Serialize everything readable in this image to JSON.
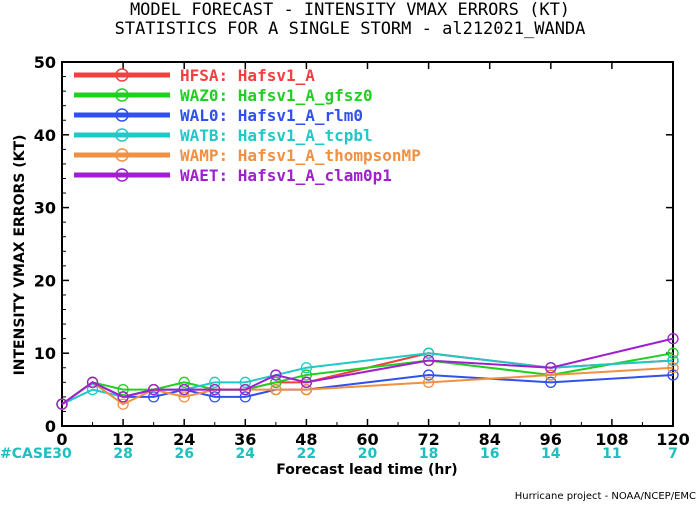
{
  "title_line1": "MODEL FORECAST - INTENSITY VMAX ERRORS (KT)",
  "title_line2": "STATISTICS FOR A SINGLE STORM - al212021_WANDA",
  "credit": "Hurricane project - NOAA/NCEP/EMC",
  "case_label": "#CASE",
  "case_counts": [
    30,
    28,
    26,
    24,
    22,
    20,
    18,
    16,
    14,
    11,
    7
  ],
  "colors": {
    "case": "#1fbfbf"
  },
  "chart_data": {
    "type": "line",
    "xlabel": "Forecast lead time (hr)",
    "ylabel": "INTENSITY VMAX ERRORS (KT)",
    "xlim": [
      0,
      120
    ],
    "ylim": [
      0,
      50
    ],
    "xticks": [
      0,
      12,
      24,
      36,
      48,
      60,
      72,
      84,
      96,
      108,
      120
    ],
    "yticks": [
      0,
      10,
      20,
      30,
      40,
      50
    ],
    "grid": false,
    "legend_position": "top-left",
    "series": [
      {
        "name": "HFSA: Hafsv1_A",
        "color": "#f04040",
        "x": [
          0,
          6,
          12,
          18,
          24,
          30,
          36,
          42,
          48,
          72,
          96,
          120
        ],
        "y": [
          3,
          6,
          4,
          5,
          5,
          5,
          5,
          6,
          6,
          10,
          8,
          9
        ]
      },
      {
        "name": "WAZ0: Hafsv1_A_gfsz0",
        "color": "#20d020",
        "x": [
          0,
          6,
          12,
          18,
          24,
          30,
          36,
          42,
          48,
          72,
          96,
          120
        ],
        "y": [
          3,
          6,
          5,
          5,
          6,
          5,
          5,
          6,
          7,
          9,
          7,
          10
        ]
      },
      {
        "name": "WAL0: Hafsv1_A_rlm0",
        "color": "#3050f0",
        "x": [
          0,
          6,
          12,
          18,
          24,
          30,
          36,
          42,
          48,
          72,
          96,
          120
        ],
        "y": [
          3,
          6,
          4,
          4,
          5,
          4,
          4,
          5,
          5,
          7,
          6,
          7
        ]
      },
      {
        "name": "WATB: Hafsv1_A_tcpbl",
        "color": "#20c8c8",
        "x": [
          0,
          6,
          12,
          18,
          24,
          30,
          36,
          42,
          48,
          72,
          96,
          120
        ],
        "y": [
          3,
          5,
          4,
          5,
          5,
          6,
          6,
          7,
          8,
          10,
          8,
          9
        ]
      },
      {
        "name": "WAMP: Hafsv1_A_thompsonMP",
        "color": "#f09040",
        "x": [
          0,
          6,
          12,
          18,
          24,
          30,
          36,
          42,
          48,
          72,
          96,
          120
        ],
        "y": [
          3,
          6,
          3,
          5,
          4,
          5,
          5,
          5,
          5,
          6,
          7,
          8
        ]
      },
      {
        "name": "WAET: Hafsv1_A_clam0p1",
        "color": "#a020d0",
        "x": [
          0,
          6,
          12,
          18,
          24,
          30,
          36,
          42,
          48,
          72,
          96,
          120
        ],
        "y": [
          3,
          6,
          4,
          5,
          5,
          5,
          5,
          7,
          6,
          9,
          8,
          12
        ]
      }
    ]
  }
}
